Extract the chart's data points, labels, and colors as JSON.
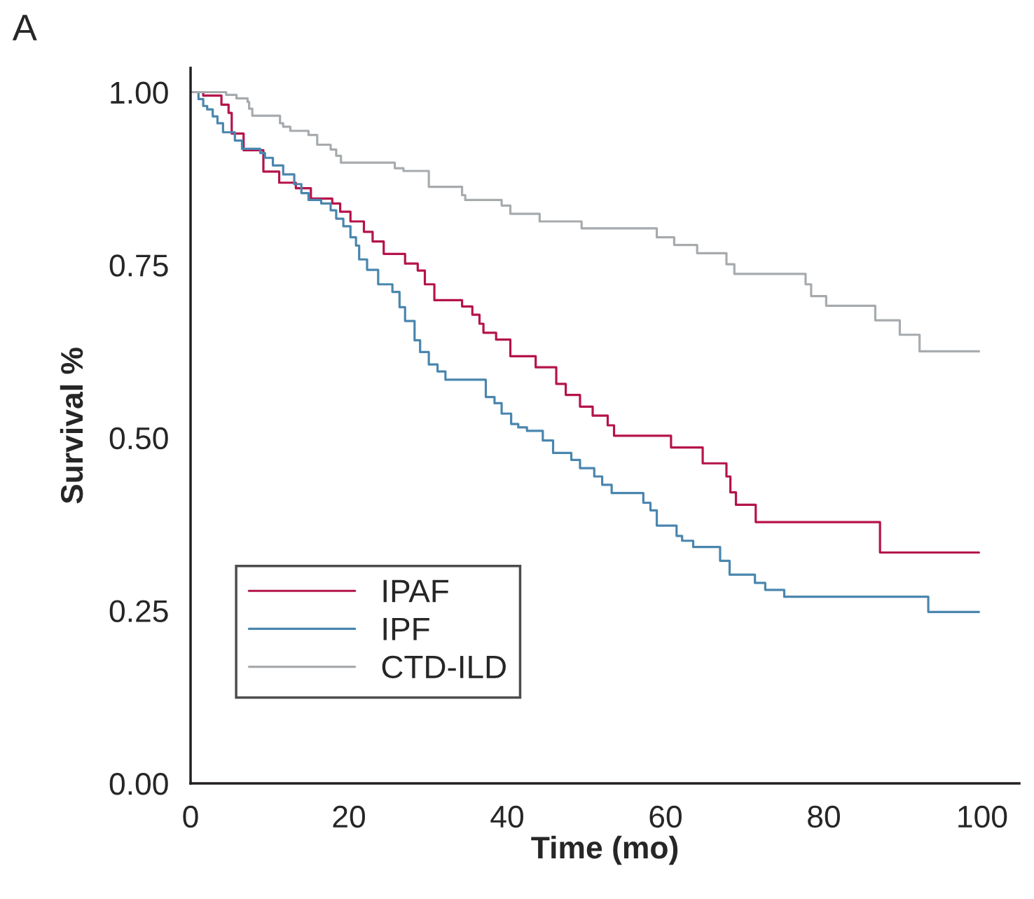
{
  "chart_data": {
    "type": "step",
    "title": "A",
    "xlabel": "Time (mo)",
    "ylabel": "Survival %",
    "xlim": [
      0,
      104.7
    ],
    "ylim": [
      0,
      1.035
    ],
    "xticks": [
      0,
      20,
      40,
      60,
      80,
      100
    ],
    "yticks": [
      {
        "value": 0,
        "label": "0.00"
      },
      {
        "value": 0.25,
        "label": "0.25"
      },
      {
        "value": 0.5,
        "label": "0.50"
      },
      {
        "value": 0.75,
        "label": "0.75"
      },
      {
        "value": 1,
        "label": "1.00"
      }
    ],
    "grid": false,
    "legend": "bottom left",
    "line_style": "solid",
    "marker": "none",
    "series": [
      {
        "name": "IPAF",
        "color": "#b5134c",
        "x": [
          0,
          1.6,
          3.9,
          4.8,
          5.2,
          6.7,
          9.2,
          11.2,
          13.3,
          15.2,
          17.9,
          18.9,
          20.2,
          21.9,
          23.0,
          24.4,
          27.1,
          28.7,
          29.6,
          30.8,
          34.3,
          35.6,
          36.5,
          37.0,
          38.6,
          40.4,
          43.6,
          46.2,
          47.4,
          49.2,
          50.8,
          52.7,
          53.5,
          60.7,
          64.7,
          67.7,
          68.2,
          68.9,
          71.4,
          87.1,
          99.6
        ],
        "values": [
          1.0,
          0.995,
          0.982,
          0.97,
          0.94,
          0.916,
          0.885,
          0.869,
          0.861,
          0.846,
          0.839,
          0.827,
          0.813,
          0.798,
          0.784,
          0.766,
          0.752,
          0.742,
          0.722,
          0.699,
          0.69,
          0.678,
          0.665,
          0.652,
          0.642,
          0.618,
          0.602,
          0.578,
          0.562,
          0.545,
          0.532,
          0.518,
          0.503,
          0.486,
          0.463,
          0.444,
          0.421,
          0.403,
          0.378,
          0.334,
          0.334
        ]
      },
      {
        "name": "IPF",
        "color": "#4a86ae",
        "x": [
          0,
          1.0,
          1.6,
          2.1,
          2.8,
          3.4,
          4.1,
          5.6,
          6.5,
          8.8,
          9.4,
          10.4,
          11.7,
          13.1,
          14.0,
          14.9,
          16.5,
          17.7,
          18.4,
          19.3,
          20.2,
          20.9,
          21.3,
          22.3,
          23.7,
          25.5,
          26.4,
          27.1,
          28.3,
          29.0,
          30.1,
          31.2,
          32.2,
          37.3,
          38.4,
          39.3,
          40.5,
          41.4,
          42.5,
          44.5,
          45.8,
          48.1,
          49.2,
          51.0,
          52.0,
          53.2,
          57.2,
          58.1,
          58.9,
          61.4,
          62.1,
          63.5,
          66.9,
          68.1,
          71.3,
          72.6,
          75.0,
          93.2,
          99.6
        ],
        "values": [
          1.0,
          0.99,
          0.98,
          0.975,
          0.965,
          0.955,
          0.942,
          0.93,
          0.918,
          0.912,
          0.905,
          0.894,
          0.881,
          0.867,
          0.854,
          0.844,
          0.839,
          0.829,
          0.817,
          0.806,
          0.79,
          0.778,
          0.758,
          0.743,
          0.722,
          0.711,
          0.689,
          0.669,
          0.641,
          0.624,
          0.606,
          0.596,
          0.584,
          0.559,
          0.55,
          0.535,
          0.52,
          0.515,
          0.51,
          0.496,
          0.478,
          0.468,
          0.456,
          0.444,
          0.432,
          0.42,
          0.406,
          0.395,
          0.373,
          0.358,
          0.351,
          0.342,
          0.322,
          0.302,
          0.29,
          0.28,
          0.27,
          0.248,
          0.248
        ]
      },
      {
        "name": "CTD-ILD",
        "color": "#a7abae",
        "x": [
          0,
          4.5,
          5.8,
          7.2,
          7.4,
          7.8,
          11.3,
          11.7,
          12.6,
          14.9,
          16.0,
          17.7,
          18.4,
          19.0,
          25.8,
          26.9,
          30.1,
          34.3,
          34.7,
          39.3,
          40.4,
          44.1,
          49.4,
          58.9,
          61.1,
          64.0,
          67.7,
          68.7,
          77.7,
          78.4,
          80.3,
          86.5,
          89.6,
          92.1,
          99.6
        ],
        "values": [
          1.0,
          0.996,
          0.991,
          0.986,
          0.976,
          0.966,
          0.955,
          0.95,
          0.944,
          0.938,
          0.924,
          0.917,
          0.908,
          0.898,
          0.89,
          0.886,
          0.863,
          0.851,
          0.844,
          0.836,
          0.824,
          0.813,
          0.803,
          0.79,
          0.779,
          0.767,
          0.751,
          0.737,
          0.722,
          0.705,
          0.691,
          0.67,
          0.649,
          0.625,
          0.625
        ]
      }
    ]
  }
}
